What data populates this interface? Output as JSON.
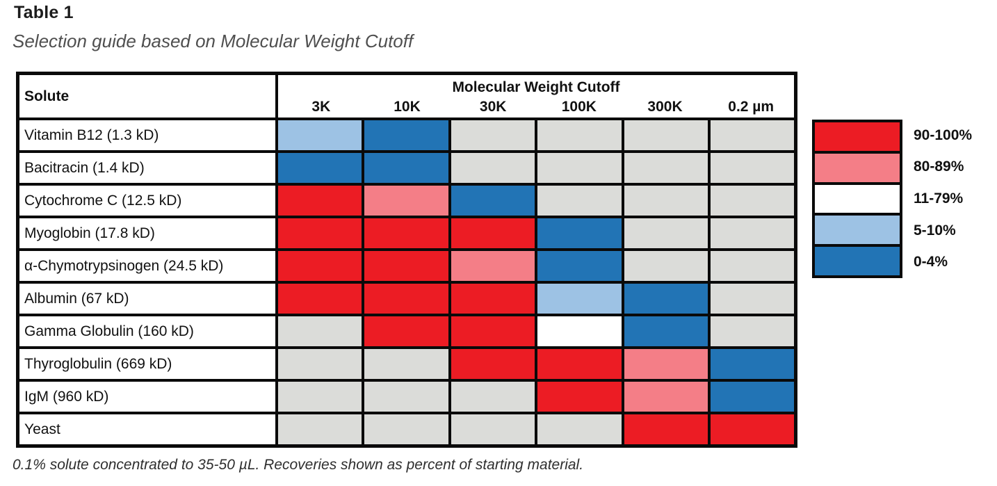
{
  "title": "Table 1",
  "subtitle": "Selection guide based on Molecular Weight Cutoff",
  "footnote": "0.1% solute concentrated to 35-50 µL. Recoveries shown as percent of starting material.",
  "table": {
    "solute_header": "Solute",
    "group_header": "Molecular Weight Cutoff",
    "columns": [
      "3K",
      "10K",
      "30K",
      "100K",
      "300K",
      "0.2 µm"
    ],
    "rows": [
      {
        "solute": "Vitamin B12 (1.3 kD)",
        "cells": [
          "5-10",
          "0-4",
          "na",
          "na",
          "na",
          "na"
        ]
      },
      {
        "solute": "Bacitracin (1.4 kD)",
        "cells": [
          "0-4",
          "0-4",
          "na",
          "na",
          "na",
          "na"
        ]
      },
      {
        "solute": "Cytochrome C (12.5 kD)",
        "cells": [
          "90-100",
          "80-89",
          "0-4",
          "na",
          "na",
          "na"
        ]
      },
      {
        "solute": "Myoglobin (17.8 kD)",
        "cells": [
          "90-100",
          "90-100",
          "90-100",
          "0-4",
          "na",
          "na"
        ]
      },
      {
        "solute": "α-Chymotrypsinogen (24.5 kD)",
        "cells": [
          "90-100",
          "90-100",
          "80-89",
          "0-4",
          "na",
          "na"
        ]
      },
      {
        "solute": "Albumin (67 kD)",
        "cells": [
          "90-100",
          "90-100",
          "90-100",
          "5-10",
          "0-4",
          "na"
        ]
      },
      {
        "solute": "Gamma Globulin (160 kD)",
        "cells": [
          "na",
          "90-100",
          "90-100",
          "11-79",
          "0-4",
          "na"
        ]
      },
      {
        "solute": "Thyroglobulin (669 kD)",
        "cells": [
          "na",
          "na",
          "90-100",
          "90-100",
          "80-89",
          "0-4"
        ]
      },
      {
        "solute": "IgM (960 kD)",
        "cells": [
          "na",
          "na",
          "na",
          "90-100",
          "80-89",
          "0-4"
        ]
      },
      {
        "solute": "Yeast",
        "cells": [
          "na",
          "na",
          "na",
          "na",
          "90-100",
          "90-100"
        ]
      }
    ]
  },
  "legend": {
    "entries": [
      {
        "label": "90-100%",
        "key": "90-100"
      },
      {
        "label": "80-89%",
        "key": "80-89"
      },
      {
        "label": "11-79%",
        "key": "11-79"
      },
      {
        "label": "5-10%",
        "key": "5-10"
      },
      {
        "label": "0-4%",
        "key": "0-4"
      }
    ]
  },
  "colors": {
    "90-100": "#EC1C24",
    "80-89": "#F47E87",
    "11-79": "#FFFFFF",
    "5-10": "#9DC2E4",
    "0-4": "#2274B5",
    "na": "#DBDCD9",
    "border": "#0A0A0A"
  }
}
